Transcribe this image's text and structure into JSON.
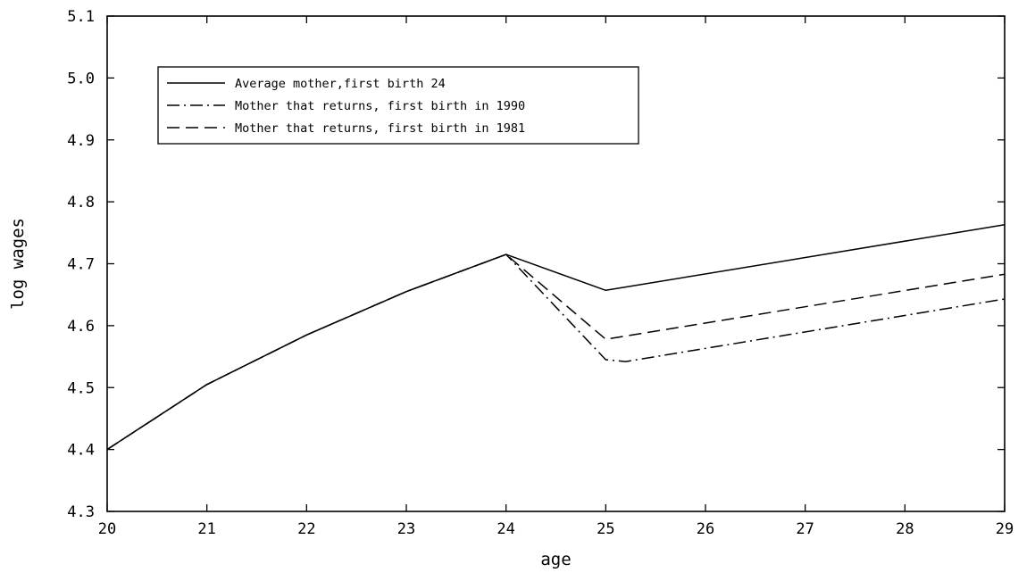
{
  "chart_data": {
    "type": "line",
    "title": "",
    "xlabel": "age",
    "ylabel": "log wages",
    "xlim": [
      20,
      29
    ],
    "ylim": [
      4.3,
      5.1
    ],
    "xticks": [
      20,
      21,
      22,
      23,
      24,
      25,
      26,
      27,
      28,
      29
    ],
    "xtick_labels": [
      "20",
      "21",
      "22",
      "23",
      "24",
      "25",
      "26",
      "27",
      "28",
      "29"
    ],
    "yticks": [
      4.3,
      4.4,
      4.5,
      4.6,
      4.7,
      4.8,
      4.9,
      5.0,
      5.1
    ],
    "ytick_labels": [
      "4.3",
      "4.4",
      "4.5",
      "4.6",
      "4.7",
      "4.8",
      "4.9",
      "5.0",
      "5.1"
    ],
    "grid": false,
    "legend_position": "top-left",
    "series": [
      {
        "name": "Average mother,first birth 24",
        "line_style": "solid",
        "color": "#000000",
        "x": [
          20,
          21,
          22,
          23,
          24,
          25,
          29
        ],
        "y": [
          4.4,
          4.505,
          4.585,
          4.655,
          4.715,
          4.657,
          4.763
        ]
      },
      {
        "name": "Mother that returns, first birth in 1990",
        "line_style": "dash-dot",
        "color": "#000000",
        "x": [
          20,
          21,
          22,
          23,
          24,
          25,
          25.2,
          29
        ],
        "y": [
          4.4,
          4.505,
          4.585,
          4.655,
          4.715,
          4.545,
          4.542,
          4.643
        ]
      },
      {
        "name": "Mother that returns, first birth in 1981",
        "line_style": "dashed",
        "color": "#000000",
        "x": [
          20,
          21,
          22,
          23,
          24,
          25,
          29
        ],
        "y": [
          4.4,
          4.505,
          4.585,
          4.655,
          4.715,
          4.578,
          4.683
        ]
      }
    ]
  }
}
